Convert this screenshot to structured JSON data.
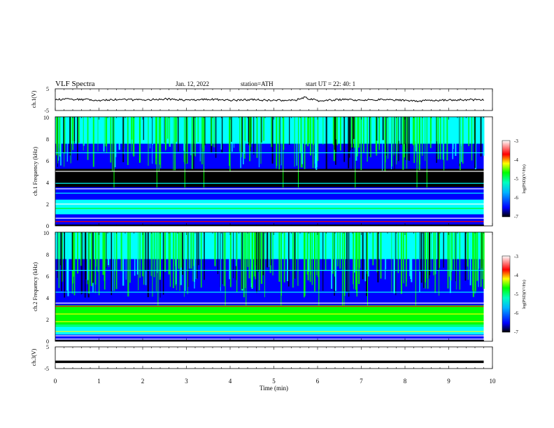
{
  "header": {
    "title": "VLF  Spectra",
    "date": "Jan. 12, 2022",
    "station": "station=ATH",
    "start": "start  UT  =   22: 40: 1"
  },
  "chart_data": [
    {
      "type": "line",
      "panel": "ch1-waveform",
      "ylabel": "ch.1(V)",
      "ylim": [
        -5,
        5
      ],
      "y_ticks": [
        "5",
        "-5"
      ],
      "x_range_min": [
        0,
        9.8
      ],
      "series": [
        {
          "x": [
            0,
            0.5,
            1,
            1.5,
            2,
            2.5,
            3,
            3.5,
            4,
            4.5,
            5,
            5.5,
            5.7,
            6,
            6.5,
            7,
            7.5,
            8,
            8.3,
            8.5,
            9,
            9.5,
            9.8
          ],
          "values": [
            0,
            0.2,
            -0.3,
            0.1,
            -0.2,
            0.3,
            -0.2,
            0.2,
            -0.3,
            0,
            -0.4,
            -0.2,
            1,
            -0.5,
            0,
            -0.2,
            0,
            -0.3,
            -0.9,
            -0.3,
            -0.2,
            0,
            -0.2
          ]
        }
      ],
      "color": "#000000"
    },
    {
      "type": "heatmap",
      "panel": "ch1-spectrogram",
      "ylabel": "ch.1  Frequency  (kHz)",
      "ylim": [
        0,
        10
      ],
      "y_ticks": [
        "0",
        "2",
        "4",
        "6",
        "8",
        "10"
      ],
      "x_range_min": [
        0,
        9.8
      ],
      "colorbar": {
        "label": "log(PSD)(V²/Hz)",
        "range": [
          -7,
          -3
        ],
        "ticks": [
          "-3",
          "-4",
          "-5",
          "-6",
          "-7"
        ],
        "colors": [
          "#000000",
          "#0000ff",
          "#00ffff",
          "#00ff00",
          "#ffff00",
          "#ff0000",
          "#ffffff"
        ]
      }
    },
    {
      "type": "heatmap",
      "panel": "ch2-spectrogram",
      "ylabel": "ch.2  Frequency  (kHz)",
      "ylim": [
        0,
        10
      ],
      "y_ticks": [
        "0",
        "2",
        "4",
        "6",
        "8",
        "10"
      ],
      "x_range_min": [
        0,
        9.8
      ],
      "colorbar": {
        "label": "log(PSD)(V²/Hz)",
        "range": [
          -7,
          -3
        ],
        "ticks": [
          "-3",
          "-4",
          "-5",
          "-6",
          "-7"
        ],
        "colors": [
          "#000000",
          "#0000ff",
          "#00ffff",
          "#00ff00",
          "#ffff00",
          "#ff0000",
          "#ffffff"
        ]
      }
    },
    {
      "type": "line",
      "panel": "ch3-waveform",
      "ylabel": "ch.3(V)",
      "ylim": [
        -5,
        5
      ],
      "y_ticks": [
        "5",
        "-5"
      ],
      "x_range_min": [
        0,
        9.8
      ],
      "series": [
        {
          "x": [
            0,
            9.8
          ],
          "values": [
            -1.9,
            -1.9
          ]
        }
      ],
      "color": "#000000"
    }
  ],
  "x_axis": {
    "label": "Time  (min)",
    "range": [
      0,
      10
    ],
    "ticks": [
      "0",
      "1",
      "2",
      "3",
      "4",
      "5",
      "6",
      "7",
      "8",
      "9",
      "10"
    ]
  }
}
